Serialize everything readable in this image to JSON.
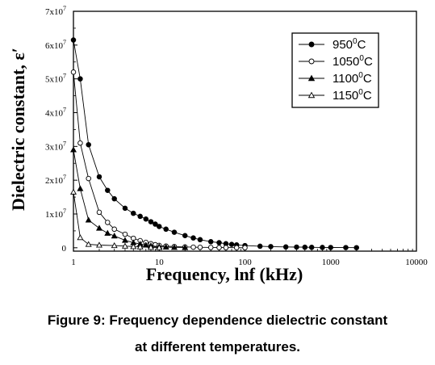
{
  "chart_data": {
    "type": "line",
    "xlabel": "Frequency, lnf (kHz)",
    "ylabel": "Dielectric constant, ε′",
    "x_scale": "log",
    "xlim": [
      1,
      10000
    ],
    "ylim": [
      -1000000,
      70000000
    ],
    "x_ticks": [
      {
        "value": 1,
        "label": "1"
      },
      {
        "value": 10,
        "label": "10"
      },
      {
        "value": 100,
        "label": "100"
      },
      {
        "value": 1000,
        "label": "1000"
      },
      {
        "value": 10000,
        "label": "10000"
      }
    ],
    "y_ticks": [
      {
        "value": 0,
        "mant": "0",
        "exp": ""
      },
      {
        "value": 10000000,
        "mant": "1x10",
        "exp": "7"
      },
      {
        "value": 20000000,
        "mant": "2x10",
        "exp": "7"
      },
      {
        "value": 30000000,
        "mant": "3x10",
        "exp": "7"
      },
      {
        "value": 40000000,
        "mant": "4x10",
        "exp": "7"
      },
      {
        "value": 50000000,
        "mant": "5x10",
        "exp": "7"
      },
      {
        "value": 60000000,
        "mant": "6x10",
        "exp": "7"
      },
      {
        "value": 70000000,
        "mant": "7x10",
        "exp": "7"
      }
    ],
    "legend_position": "top-right",
    "grid": false,
    "series": [
      {
        "name": "950",
        "sup": "0",
        "unit": "C",
        "marker": "circle",
        "fill": "filled",
        "x": [
          1,
          1.2,
          1.5,
          2,
          2.5,
          3,
          4,
          5,
          6,
          7,
          8,
          9,
          10,
          12,
          15,
          20,
          25,
          30,
          40,
          50,
          60,
          70,
          80,
          100,
          150,
          200,
          300,
          400,
          500,
          600,
          800,
          1000,
          1500,
          2000
        ],
        "y": [
          61500000,
          50000000,
          30500000,
          21000000,
          17000000,
          14500000,
          11700000,
          10200000,
          9300000,
          8500000,
          7700000,
          7000000,
          6300000,
          5500000,
          4600000,
          3600000,
          2900000,
          2400000,
          1800000,
          1500000,
          1200000,
          1000000,
          850000,
          650000,
          450000,
          350000,
          250000,
          200000,
          160000,
          130000,
          100000,
          80000,
          50000,
          30000
        ]
      },
      {
        "name": "1050",
        "sup": "0",
        "unit": "C",
        "marker": "circle",
        "fill": "open",
        "x": [
          1,
          1.2,
          1.5,
          2,
          2.5,
          3,
          4,
          5,
          6,
          7,
          8,
          9,
          10,
          12,
          15,
          20,
          25,
          30,
          40,
          50,
          60,
          80,
          100
        ],
        "y": [
          52000000,
          31000000,
          20500000,
          10500000,
          7500000,
          5500000,
          4000000,
          2800000,
          2100000,
          1600000,
          1200000,
          900000,
          700000,
          500000,
          350000,
          250000,
          180000,
          130000,
          90000,
          60000,
          40000,
          20000,
          10000
        ]
      },
      {
        "name": "1100",
        "sup": "0",
        "unit": "C",
        "marker": "triangle",
        "fill": "filled",
        "x": [
          1,
          1.2,
          1.5,
          2,
          2.5,
          3,
          4,
          5,
          6,
          7,
          8,
          10,
          12,
          15,
          20
        ],
        "y": [
          29000000,
          17500000,
          8200000,
          5800000,
          4300000,
          3500000,
          2200000,
          1500000,
          1100000,
          800000,
          600000,
          350000,
          200000,
          100000,
          50000
        ]
      },
      {
        "name": "1150",
        "sup": "0",
        "unit": "C",
        "marker": "triangle",
        "fill": "open",
        "x": [
          1,
          1.2,
          1.5,
          2,
          3,
          4,
          5,
          6,
          8,
          10
        ],
        "y": [
          16500000,
          3000000,
          1000000,
          800000,
          650000,
          500000,
          350000,
          250000,
          120000,
          50000
        ]
      }
    ]
  },
  "caption": {
    "line1": "Figure 9: Frequency dependence dielectric constant",
    "line2": "at different temperatures."
  }
}
